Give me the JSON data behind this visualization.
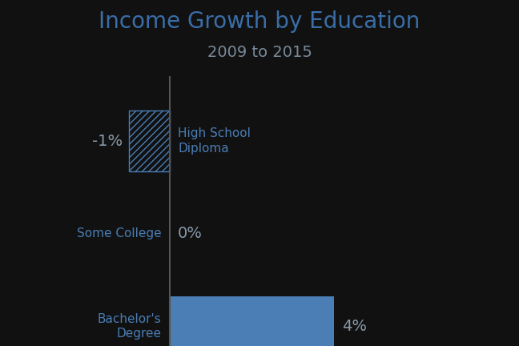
{
  "title": "Income Growth by Education",
  "subtitle": "2009 to 2015",
  "categories": [
    "High School\nDiploma",
    "Some College",
    "Bachelor's\nDegree"
  ],
  "values": [
    -1,
    0,
    4
  ],
  "value_labels": [
    "-1%",
    "0%",
    "4%"
  ],
  "bar_color_solid": "#4a7eb5",
  "bar_color_hatch": "#4a7eb5",
  "background_color": "#111111",
  "title_color": "#3a6ea8",
  "subtitle_color": "#7a8a9a",
  "label_color": "#4a7eb5",
  "value_color": "#8a9aaa",
  "axis_color": "#555555",
  "xlim": [
    -3.5,
    7.5
  ],
  "title_fontsize": 20,
  "subtitle_fontsize": 14,
  "label_fontsize": 11,
  "value_fontsize": 14
}
